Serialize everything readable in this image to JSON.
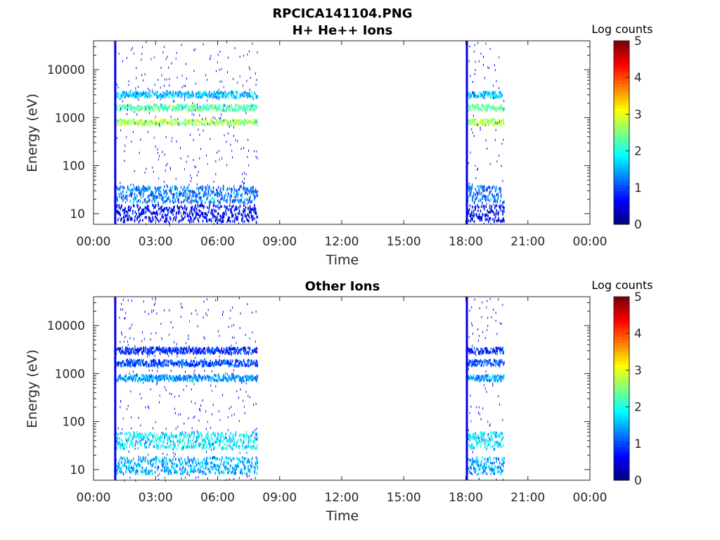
{
  "figure": {
    "title_line1": "RPCICA141104.PNG"
  },
  "chart_data": [
    {
      "type": "heatmap",
      "title": "H+ He++ Ions",
      "xlabel": "Time",
      "ylabel": "Energy (eV)",
      "y_scale": "log",
      "ylim": [
        6,
        40000
      ],
      "xlim_hours": [
        0,
        24
      ],
      "x_tick_labels": [
        "00:00",
        "03:00",
        "06:00",
        "09:00",
        "12:00",
        "15:00",
        "18:00",
        "21:00",
        "00:00"
      ],
      "y_tick_labels": [
        "10",
        "100",
        "1000",
        "10000"
      ],
      "colorbar": {
        "label": "Log counts",
        "range": [
          0,
          5
        ],
        "tick_labels": [
          "0",
          "1",
          "2",
          "3",
          "4",
          "5"
        ],
        "colormap": "jet"
      },
      "data_intervals": [
        {
          "start": "01:00",
          "end": "07:55"
        },
        {
          "start": "18:05",
          "end": "19:50"
        }
      ],
      "calibration_lines_hours": [
        1.05,
        18.05
      ],
      "bands": [
        {
          "energy_eV": 800,
          "log_counts": 2.7
        },
        {
          "energy_eV": 1600,
          "log_counts": 2.3
        },
        {
          "energy_eV": 3000,
          "log_counts": 1.6
        },
        {
          "energy_eV": 25,
          "log_counts": 1.2
        },
        {
          "energy_eV": 10,
          "log_counts": 0.6
        }
      ]
    },
    {
      "type": "heatmap",
      "title": "Other Ions",
      "xlabel": "Time",
      "ylabel": "Energy (eV)",
      "y_scale": "log",
      "ylim": [
        6,
        40000
      ],
      "xlim_hours": [
        0,
        24
      ],
      "x_tick_labels": [
        "00:00",
        "03:00",
        "06:00",
        "09:00",
        "12:00",
        "15:00",
        "18:00",
        "21:00",
        "00:00"
      ],
      "y_tick_labels": [
        "10",
        "100",
        "1000",
        "10000"
      ],
      "colorbar": {
        "label": "Log counts",
        "range": [
          0,
          5
        ],
        "tick_labels": [
          "0",
          "1",
          "2",
          "3",
          "4",
          "5"
        ],
        "colormap": "jet"
      },
      "data_intervals": [
        {
          "start": "01:00",
          "end": "07:55"
        },
        {
          "start": "18:05",
          "end": "19:50"
        }
      ],
      "calibration_lines_hours": [
        1.05,
        18.05
      ],
      "bands": [
        {
          "energy_eV": 800,
          "log_counts": 1.4
        },
        {
          "energy_eV": 1650,
          "log_counts": 1.0
        },
        {
          "energy_eV": 3000,
          "log_counts": 0.8
        },
        {
          "energy_eV": 40,
          "log_counts": 1.8
        },
        {
          "energy_eV": 12,
          "log_counts": 1.5
        }
      ]
    }
  ]
}
